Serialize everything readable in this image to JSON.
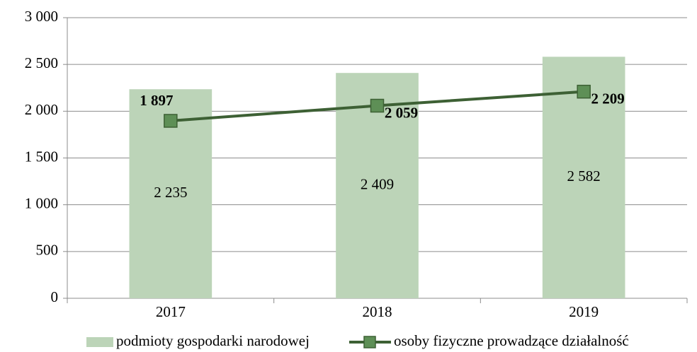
{
  "chart_data": {
    "type": "combo",
    "categories": [
      "2017",
      "2018",
      "2019"
    ],
    "series": [
      {
        "name": "podmioty gospodarki narodowej",
        "type": "bar",
        "color": "#bcd4b8",
        "values": [
          2235,
          2409,
          2582
        ],
        "value_labels": [
          "2 235",
          "2 409",
          "2 582"
        ]
      },
      {
        "name": "osoby fizyczne prowadzące działalność",
        "type": "line",
        "color": "#3d6034",
        "marker_color": "#5e8f56",
        "values": [
          1897,
          2059,
          2209
        ],
        "value_labels": [
          "1 897",
          "2 059",
          "2 209"
        ]
      }
    ],
    "ylim": [
      0,
      3000
    ],
    "yticks": [
      0,
      500,
      {
        "value": 1000,
        "label": "1 000"
      },
      {
        "value": 1500,
        "label": "1 500"
      },
      {
        "value": 2000,
        "label": "2 000"
      },
      {
        "value": 2500,
        "label": "2 500"
      },
      {
        "value": 3000,
        "label": "3 000"
      }
    ],
    "grid": true,
    "legend": "bottom"
  }
}
